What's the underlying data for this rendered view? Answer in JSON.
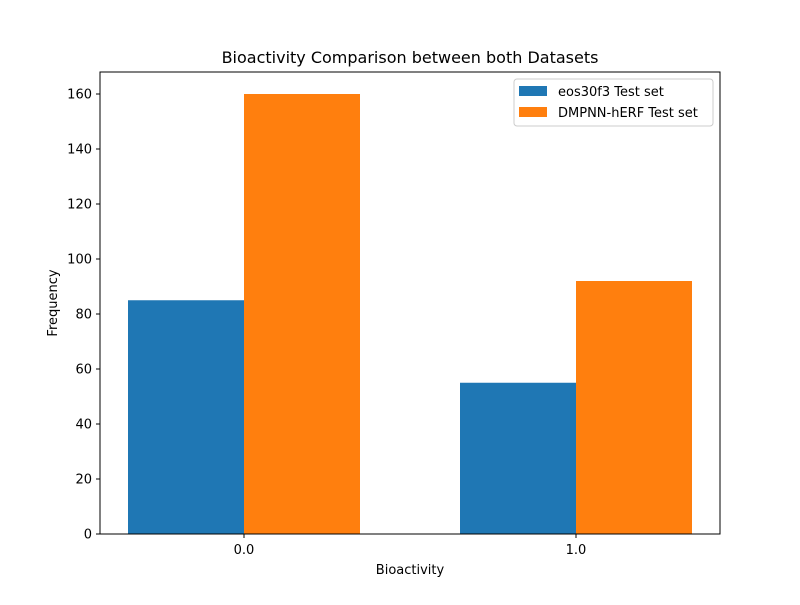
{
  "chart_data": {
    "type": "bar",
    "title": "Bioactivity Comparison between both Datasets",
    "xlabel": "Bioactivity",
    "ylabel": "Frequency",
    "categories": [
      "0.0",
      "1.0"
    ],
    "series": [
      {
        "name": "eos30f3 Test set",
        "color": "#1f77b4",
        "values": [
          85,
          55
        ]
      },
      {
        "name": "DMPNN-hERF Test set",
        "color": "#ff7f0e",
        "values": [
          160,
          92
        ]
      }
    ],
    "ylim": [
      0,
      168
    ],
    "yticks": [
      0,
      20,
      40,
      60,
      80,
      100,
      120,
      140,
      160
    ],
    "grid": false,
    "legend_position": "top-right"
  }
}
